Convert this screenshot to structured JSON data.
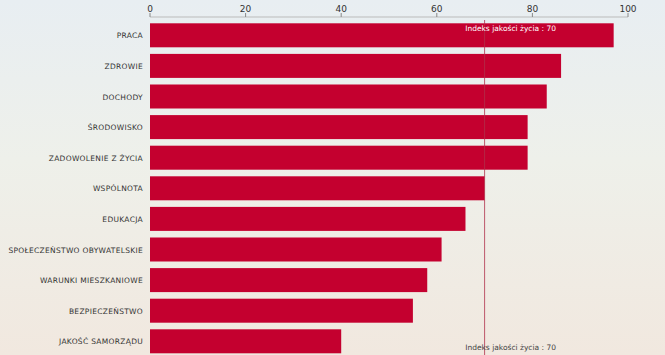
{
  "chart_data": {
    "type": "bar",
    "orientation": "horizontal",
    "categories": [
      "PRACA",
      "ZDROWIE",
      "DOCHODY",
      "ŚRODOWISKO",
      "ZADOWOLENIE Z ŻYCIA",
      "WSPÓLNOTA",
      "EDUKACJA",
      "SPOŁECZEŃSTWO OBYWATELSKIE",
      "WARUNKI MIESZKANIOWE",
      "BEZPIECZEŃSTWO",
      "JAKOŚĆ SAMORZĄDU"
    ],
    "values": [
      97,
      86,
      83,
      79,
      79,
      70,
      66,
      61,
      58,
      55,
      40
    ],
    "color": "#c4002f",
    "xlim": [
      0,
      100
    ],
    "xticks": [
      0,
      20,
      40,
      60,
      80,
      100
    ],
    "grid": false,
    "annotations": [
      {
        "value": 70,
        "label": "Indeks jakości życia : 70"
      }
    ]
  }
}
